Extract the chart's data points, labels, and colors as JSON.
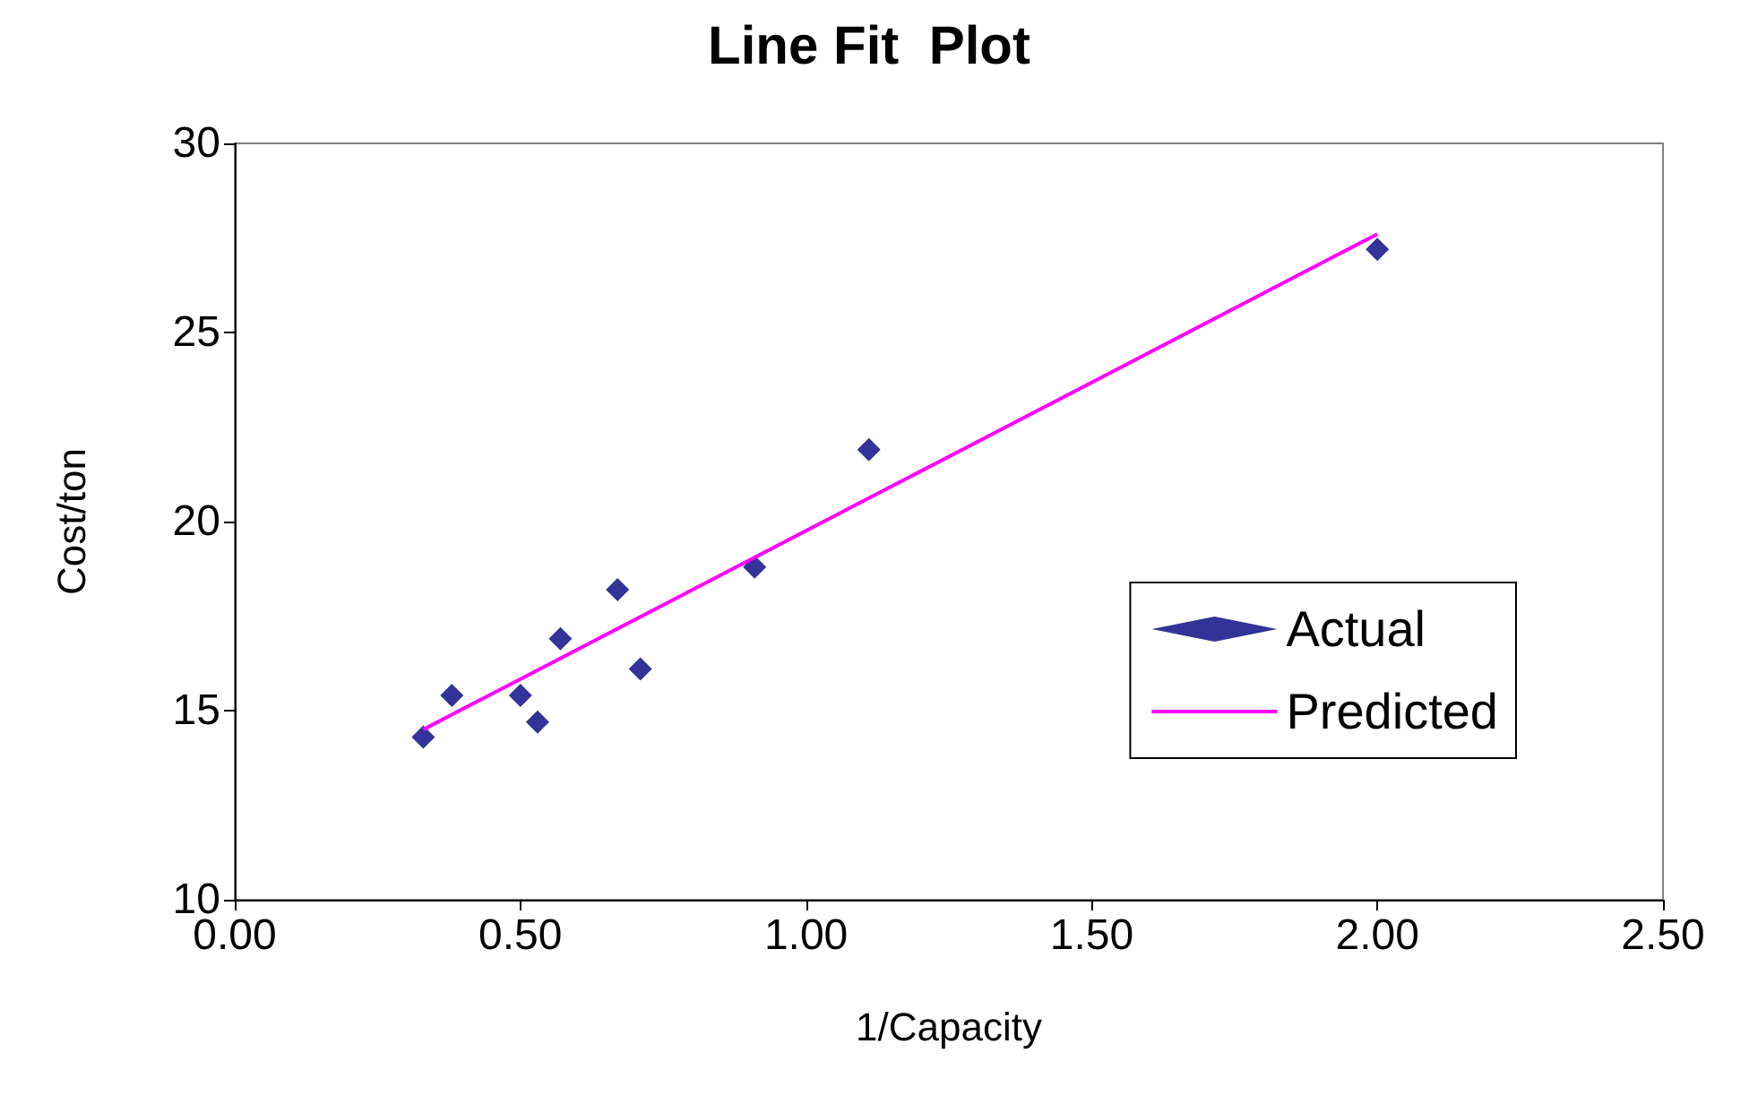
{
  "chart_data": {
    "type": "scatter",
    "title": "Line Fit  Plot",
    "xlabel": "1/Capacity",
    "ylabel": "Cost/ton",
    "xlim": [
      0,
      2.5
    ],
    "xticks": [
      {
        "value": 0,
        "label": "0.00"
      },
      {
        "value": 0.5,
        "label": "0.50"
      },
      {
        "value": 1,
        "label": "1.00"
      },
      {
        "value": 1.5,
        "label": "1.50"
      },
      {
        "value": 2,
        "label": "2.00"
      },
      {
        "value": 2.5,
        "label": "2.50"
      }
    ],
    "ylim": [
      10,
      30
    ],
    "yticks": [
      10,
      15,
      20,
      25,
      30
    ],
    "grid": false,
    "legend": "right",
    "series": [
      {
        "name": "Actual",
        "marker": "diamond",
        "color": "#000080",
        "x": [
          0.33,
          0.38,
          0.5,
          0.53,
          0.57,
          0.67,
          0.71,
          0.91,
          1.11,
          2.0
        ],
        "values": [
          14.3,
          15.4,
          15.4,
          14.7,
          16.9,
          18.2,
          16.1,
          18.8,
          21.9,
          27.2
        ]
      },
      {
        "name": "Predicted",
        "type": "line",
        "marker": "none",
        "color": "#ff00ff",
        "x": [
          0.33,
          2.0
        ],
        "values": [
          14.5,
          27.6
        ]
      }
    ]
  }
}
